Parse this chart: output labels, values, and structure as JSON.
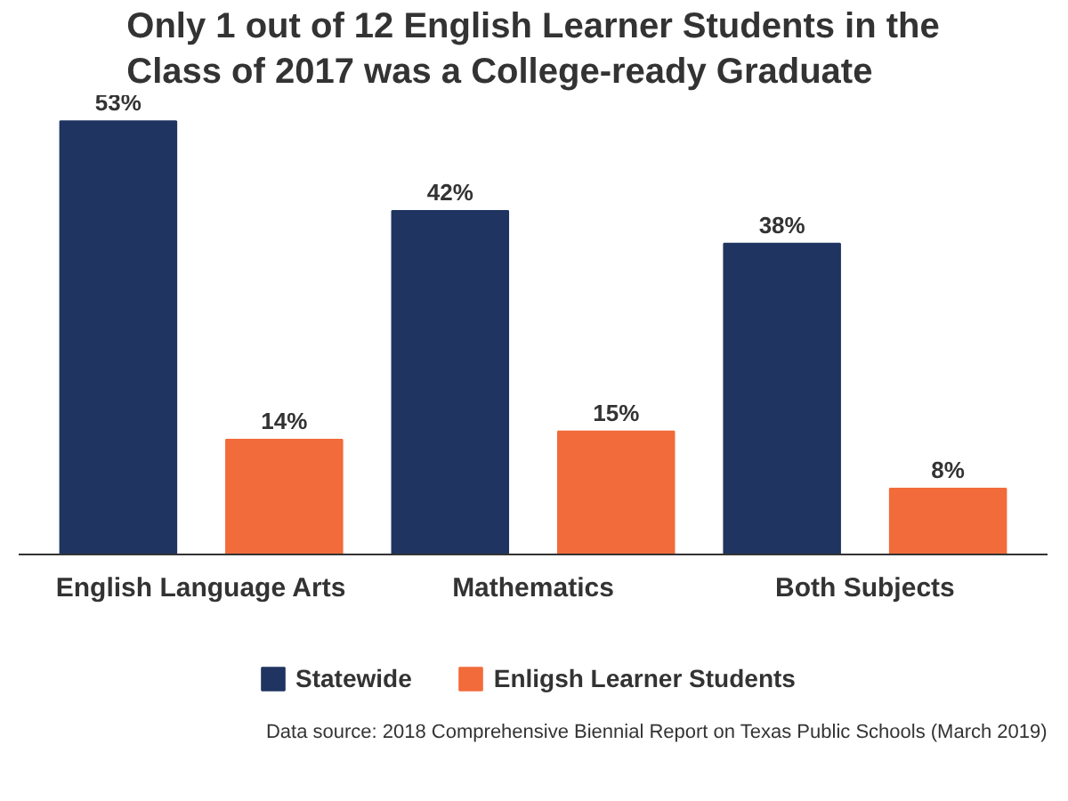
{
  "chart_data": {
    "type": "bar",
    "title": "Only 1 out of 12 English Learner Students in the Class of 2017 was a College-ready Graduate",
    "categories": [
      "English Language Arts",
      "Mathematics",
      "Both Subjects"
    ],
    "series": [
      {
        "name": "Statewide",
        "color": "#1f3461",
        "values": [
          53,
          42,
          38
        ],
        "value_labels": [
          "53%",
          "42%",
          "38%"
        ]
      },
      {
        "name": "Enligsh Learner Students",
        "color": "#f26b3a",
        "values": [
          14,
          15,
          8
        ],
        "value_labels": [
          "14%",
          "15%",
          "8%"
        ]
      }
    ],
    "legend": "bottom",
    "annotations": [
      "Data source: 2018 Comprehensive Biennial Report on Texas Public Schools (March 2019)"
    ]
  }
}
